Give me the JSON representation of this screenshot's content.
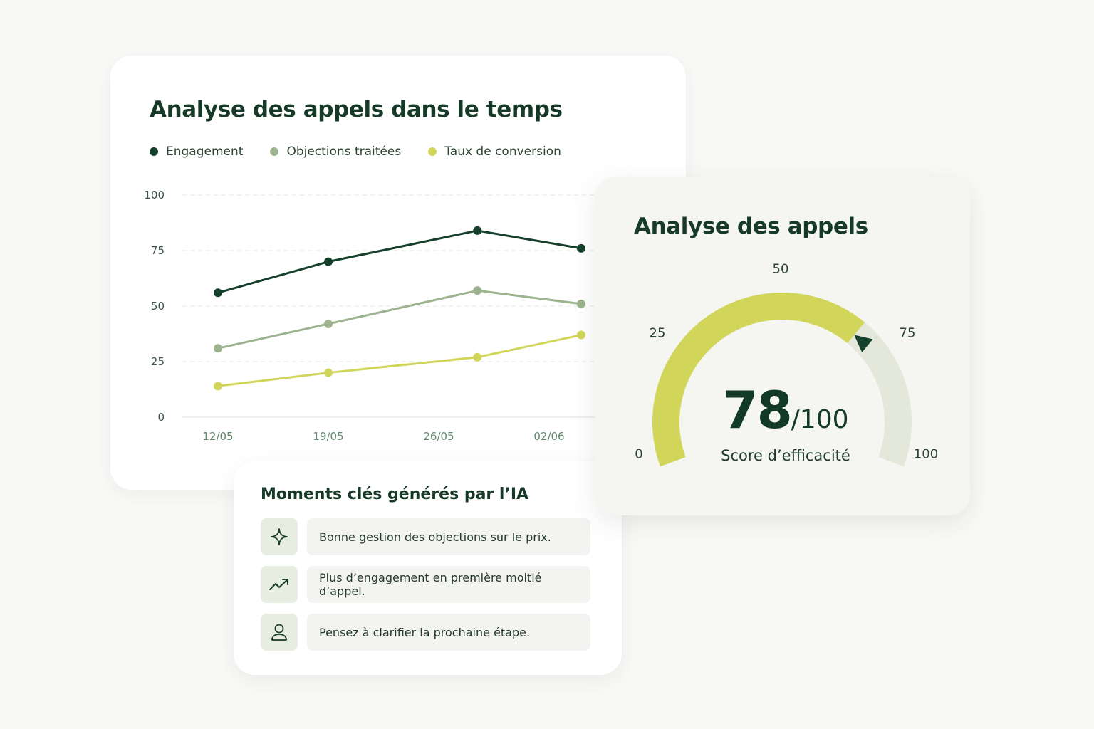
{
  "chart_card": {
    "title": "Analyse des appels dans le temps",
    "legend": [
      {
        "label": "Engagement",
        "color": "#15402b"
      },
      {
        "label": "Objections traitées",
        "color": "#9db48f"
      },
      {
        "label": "Taux de conversion",
        "color": "#d1d65a"
      }
    ]
  },
  "chart_data": {
    "type": "line",
    "categories": [
      "12/05",
      "19/05",
      "26/05",
      "02/06"
    ],
    "x": [
      0,
      1,
      2.35,
      3.29
    ],
    "series": [
      {
        "name": "Engagement",
        "color": "#15402b",
        "values": [
          56,
          70,
          84,
          76
        ]
      },
      {
        "name": "Objections traitées",
        "color": "#9db48f",
        "values": [
          31,
          42,
          57,
          51
        ]
      },
      {
        "name": "Taux de conversion",
        "color": "#d1d65a",
        "values": [
          14,
          20,
          27,
          37
        ]
      }
    ],
    "yticks": [
      0,
      25,
      50,
      75,
      100
    ],
    "ylim": [
      0,
      100
    ],
    "grid": true,
    "legend": "top-left"
  },
  "gauge_card": {
    "title": "Analyse des appels",
    "score": "78",
    "score_max": "/100",
    "score_label": "Score d’efficacité",
    "score_value": 78,
    "scale_labels": [
      "0",
      "25",
      "50",
      "75",
      "100"
    ],
    "fill_color": "#d1d65a",
    "track_color": "#e3e8da",
    "needle_color": "#15402b"
  },
  "moments_card": {
    "title": "Moments clés générés par l’IA",
    "items": [
      {
        "icon": "sparkle-icon",
        "text": "Bonne gestion des objections sur le prix."
      },
      {
        "icon": "trending-up-icon",
        "text": "Plus d’engagement en première moitié d’appel."
      },
      {
        "icon": "user-icon",
        "text": "Pensez à clarifier la prochaine étape."
      }
    ]
  }
}
